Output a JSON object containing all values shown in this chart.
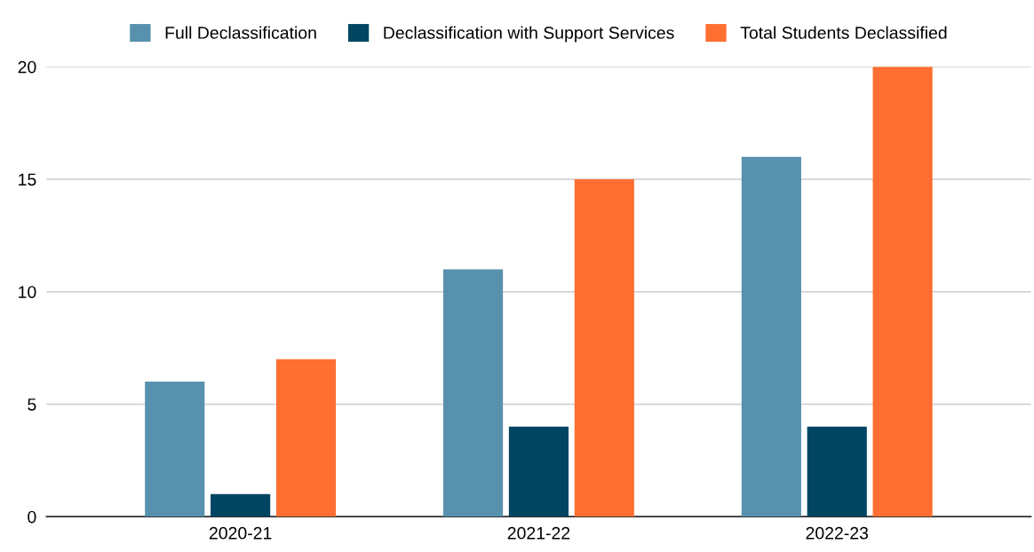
{
  "chart_data": {
    "type": "bar",
    "categories": [
      "2020-21",
      "2021-22",
      "2022-23"
    ],
    "series": [
      {
        "name": "Full Declassification",
        "color": "#5891ad",
        "values": [
          6,
          11,
          16
        ]
      },
      {
        "name": "Declassification with Support Services",
        "color": "#004561",
        "values": [
          1,
          4,
          4
        ]
      },
      {
        "name": "Total Students Declassified",
        "color": "#ff6f31",
        "values": [
          7,
          15,
          20
        ]
      }
    ],
    "ylim": [
      0,
      20
    ],
    "yticks": [
      0,
      5,
      10,
      15,
      20
    ],
    "grid": "y",
    "legend": "top"
  }
}
